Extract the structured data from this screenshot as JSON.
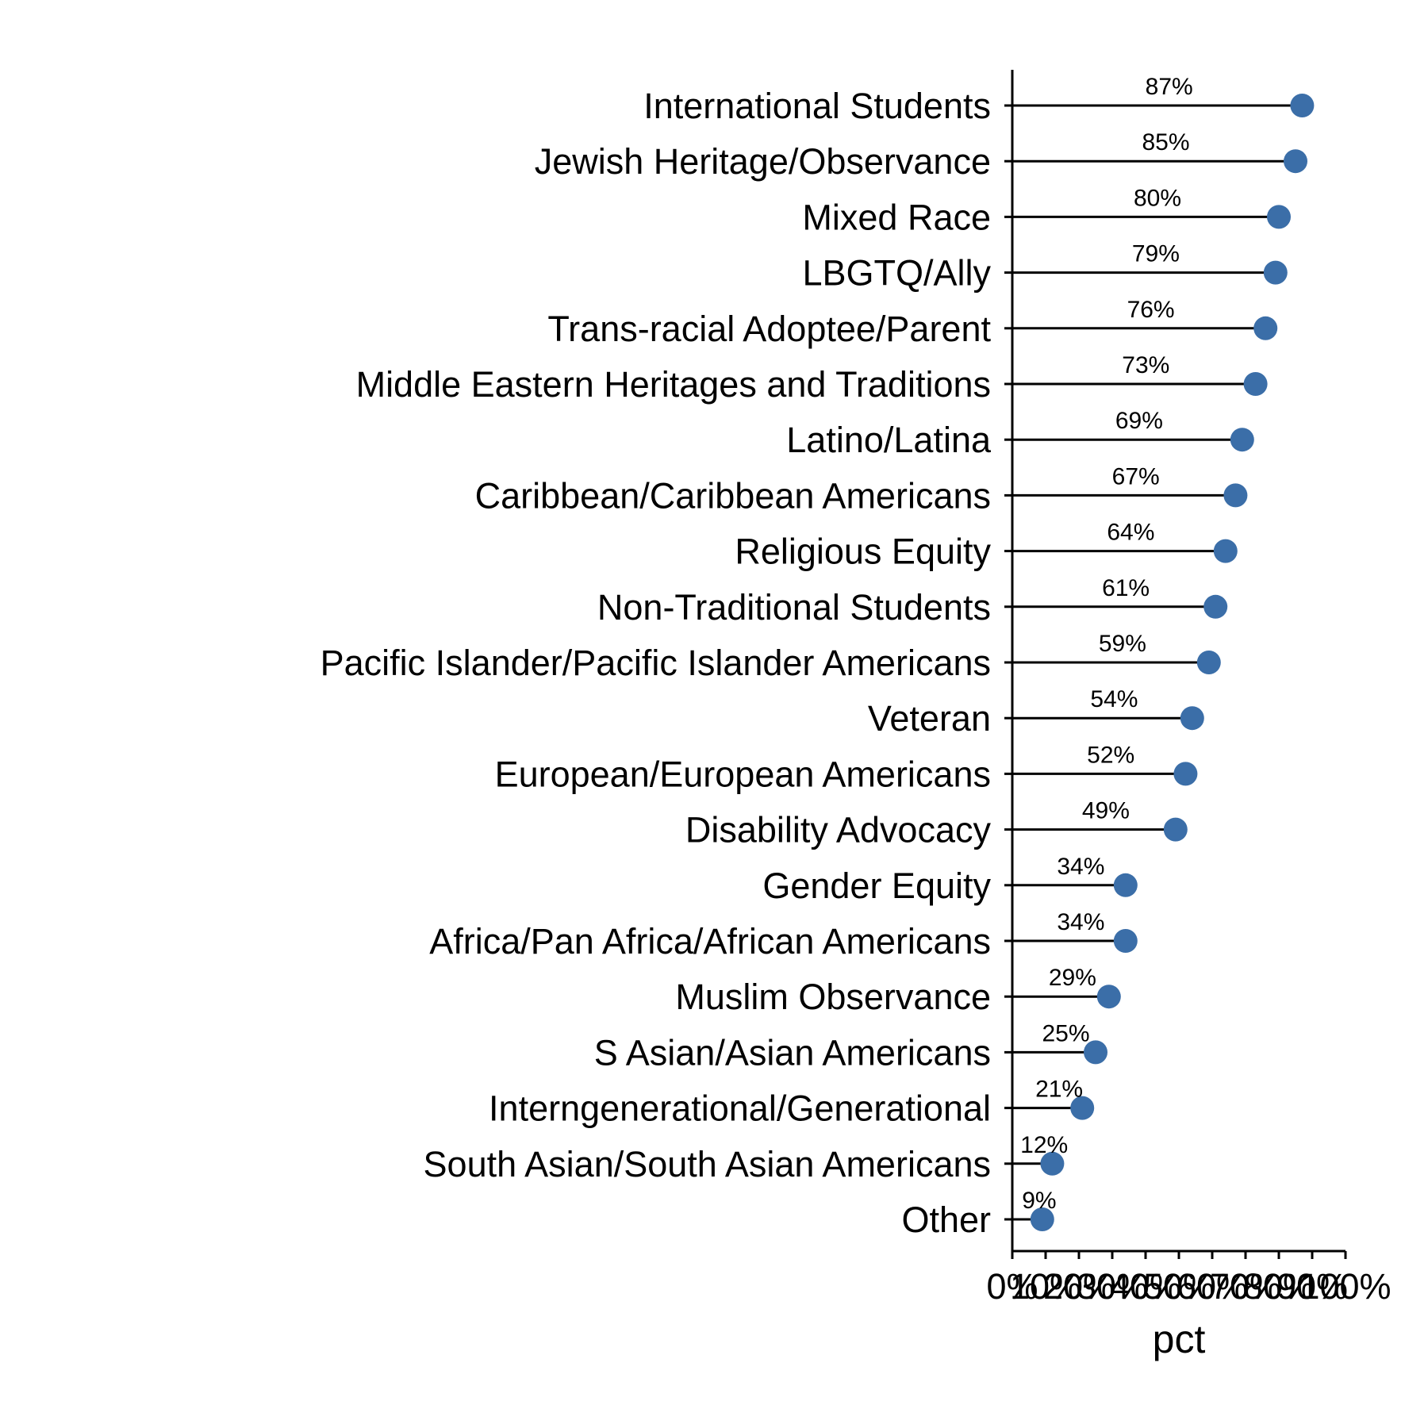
{
  "chart_data": {
    "type": "lollipop",
    "xlabel": "pct",
    "ylabel": "",
    "xlim": [
      0,
      100
    ],
    "x_ticks": [
      "0%",
      "10%",
      "20%",
      "30%",
      "40%",
      "50%",
      "60%",
      "70%",
      "80%",
      "90%",
      "100%"
    ],
    "marker_color": "#3b6ea8",
    "categories": [
      "International Students",
      "Jewish Heritage/Observance",
      "Mixed Race",
      "LBGTQ/Ally",
      "Trans-racial Adoptee/Parent",
      "Middle Eastern Heritages and Traditions",
      "Latino/Latina",
      "Caribbean/Caribbean Americans",
      "Religious Equity",
      "Non-Traditional Students",
      "Pacific Islander/Pacific Islander Americans",
      "Veteran",
      "European/European Americans",
      "Disability Advocacy",
      "Gender Equity",
      "Africa/Pan Africa/African Americans",
      "Muslim Observance",
      "S Asian/Asian Americans",
      "Interngenerational/Generational",
      "South Asian/South Asian Americans",
      "Other"
    ],
    "values": [
      87,
      85,
      80,
      79,
      76,
      73,
      69,
      67,
      64,
      61,
      59,
      54,
      52,
      49,
      34,
      34,
      29,
      25,
      21,
      12,
      9
    ],
    "value_labels": [
      "87%",
      "85%",
      "80%",
      "79%",
      "76%",
      "73%",
      "69%",
      "67%",
      "64%",
      "61%",
      "59%",
      "54%",
      "52%",
      "49%",
      "34%",
      "34%",
      "29%",
      "25%",
      "21%",
      "12%",
      "9%"
    ]
  }
}
